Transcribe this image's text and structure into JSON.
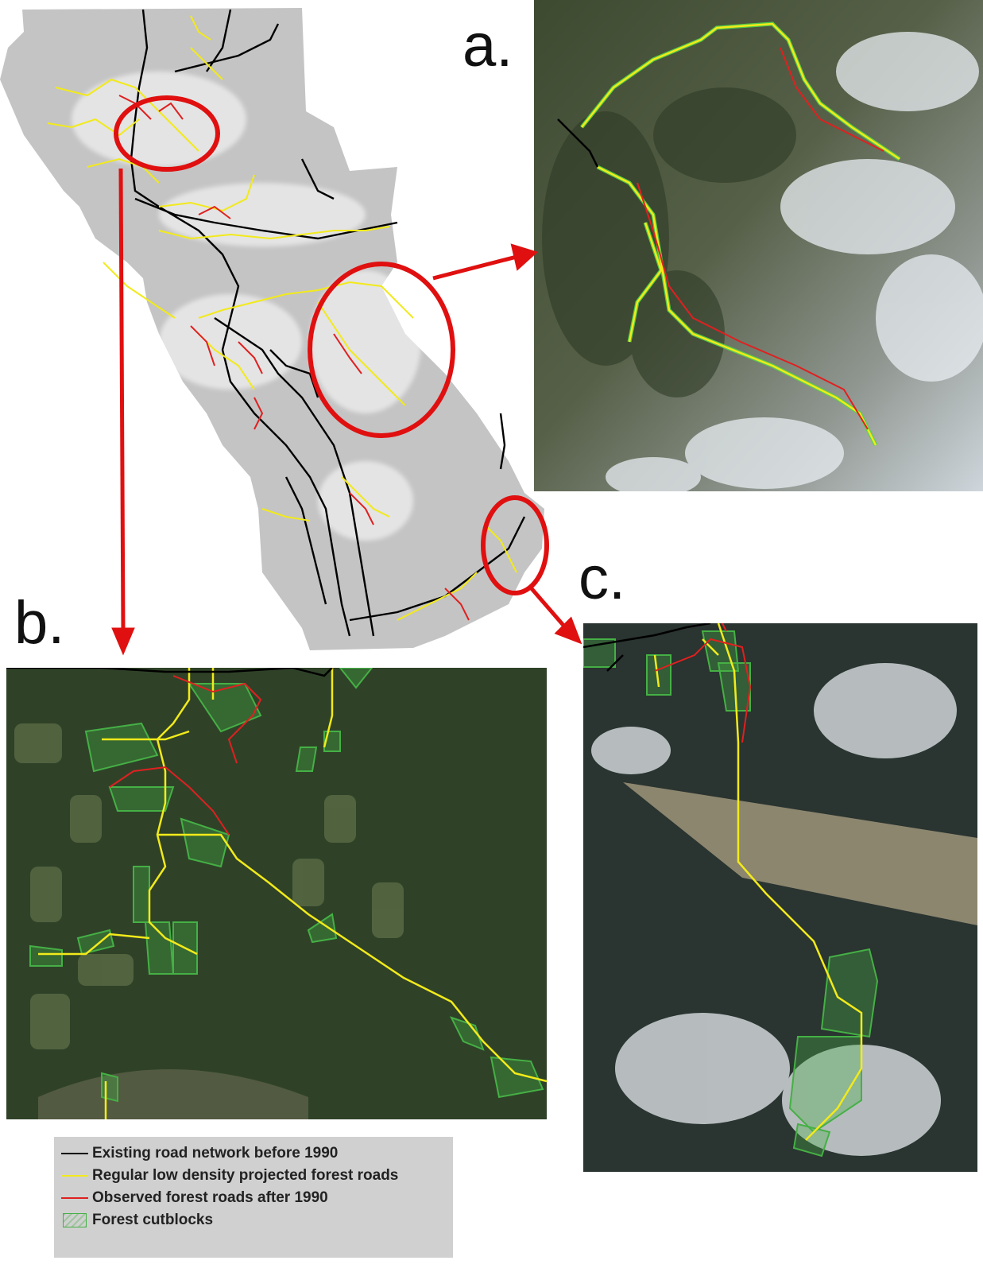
{
  "panels": {
    "a": {
      "label": "a."
    },
    "b": {
      "label": "b."
    },
    "c": {
      "label": "c."
    }
  },
  "legend": {
    "items": [
      {
        "label": "Existing road network before 1990",
        "symbol": "line",
        "color": "#000000"
      },
      {
        "label": "Regular low density projected forest roads",
        "symbol": "line",
        "color": "#f2ea1a"
      },
      {
        "label": "Observed forest roads after 1990",
        "symbol": "line",
        "color": "#e02020"
      },
      {
        "label": "Forest cutblocks",
        "symbol": "hatch",
        "color": "#45b045"
      }
    ]
  },
  "colors": {
    "existing_road": "#000000",
    "projected_road": "#f2ea1a",
    "observed_road": "#e02020",
    "cutblock": "#45b045",
    "highlight_circle": "#e01010",
    "study_area": "#c4c4c4"
  }
}
